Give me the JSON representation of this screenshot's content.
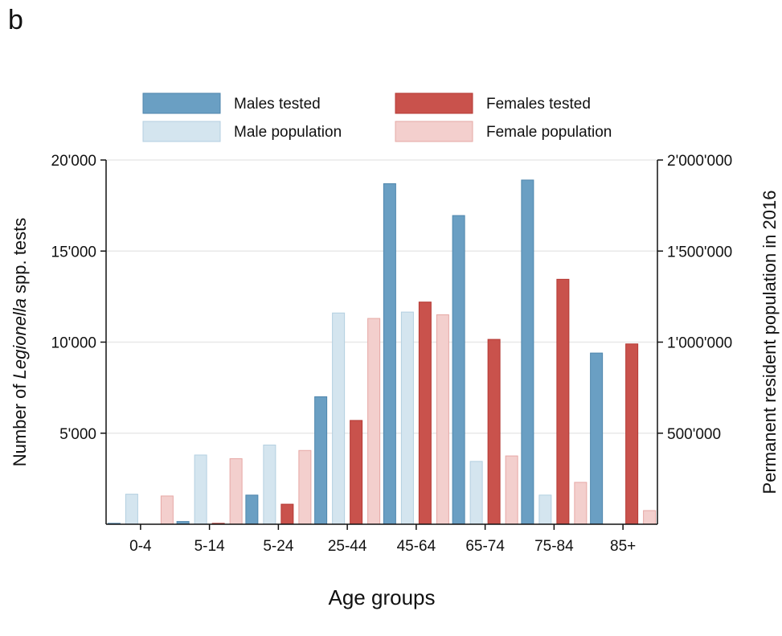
{
  "panel_label": "b",
  "colors": {
    "males_tested": "#6a9fc3",
    "males_tested_edge": "#4f86ad",
    "male_population": "#d4e5ef",
    "male_population_edge": "#b3cfe0",
    "females_tested": "#c9524c",
    "females_tested_edge": "#b53a34",
    "female_population": "#f3cfcd",
    "female_population_edge": "#e6a8a5",
    "grid": "#e8e8e8"
  },
  "chart_data": {
    "type": "bar",
    "xlabel": "Age groups",
    "ylabel_prefix": "Number of ",
    "ylabel_italic": "Legionella",
    "ylabel_suffix": " spp. tests",
    "y2label": "Permanent resident population in 2016",
    "categories": [
      "0-4",
      "5-14",
      "5-24",
      "25-44",
      "45-64",
      "65-74",
      "75-84",
      "85+"
    ],
    "ylim": [
      0,
      20000
    ],
    "y_ticks": [
      5000,
      10000,
      15000,
      20000
    ],
    "y_tick_labels": [
      "5'000",
      "10'000",
      "15'000",
      "20'000"
    ],
    "y2lim": [
      0,
      2000000
    ],
    "y2_ticks": [
      500000,
      1000000,
      1500000,
      2000000
    ],
    "y2_tick_labels": [
      "500'000",
      "1'000'000",
      "1'500'000",
      "2'000'000"
    ],
    "grid": true,
    "legend_position": "top",
    "series": [
      {
        "name": "Males tested",
        "axis": "left",
        "values": [
          50,
          150,
          1600,
          7000,
          18700,
          16950,
          18900,
          9400
        ]
      },
      {
        "name": "Male population",
        "axis": "right",
        "values": [
          165000,
          380000,
          435000,
          1160000,
          1165000,
          345000,
          160000,
          0
        ]
      },
      {
        "name": "Females tested",
        "axis": "left",
        "values": [
          0,
          50,
          1100,
          5700,
          12200,
          10150,
          13450,
          9900
        ]
      },
      {
        "name": "Female population",
        "axis": "right",
        "values": [
          155000,
          360000,
          405000,
          1130000,
          1150000,
          375000,
          230000,
          75000
        ]
      }
    ]
  }
}
